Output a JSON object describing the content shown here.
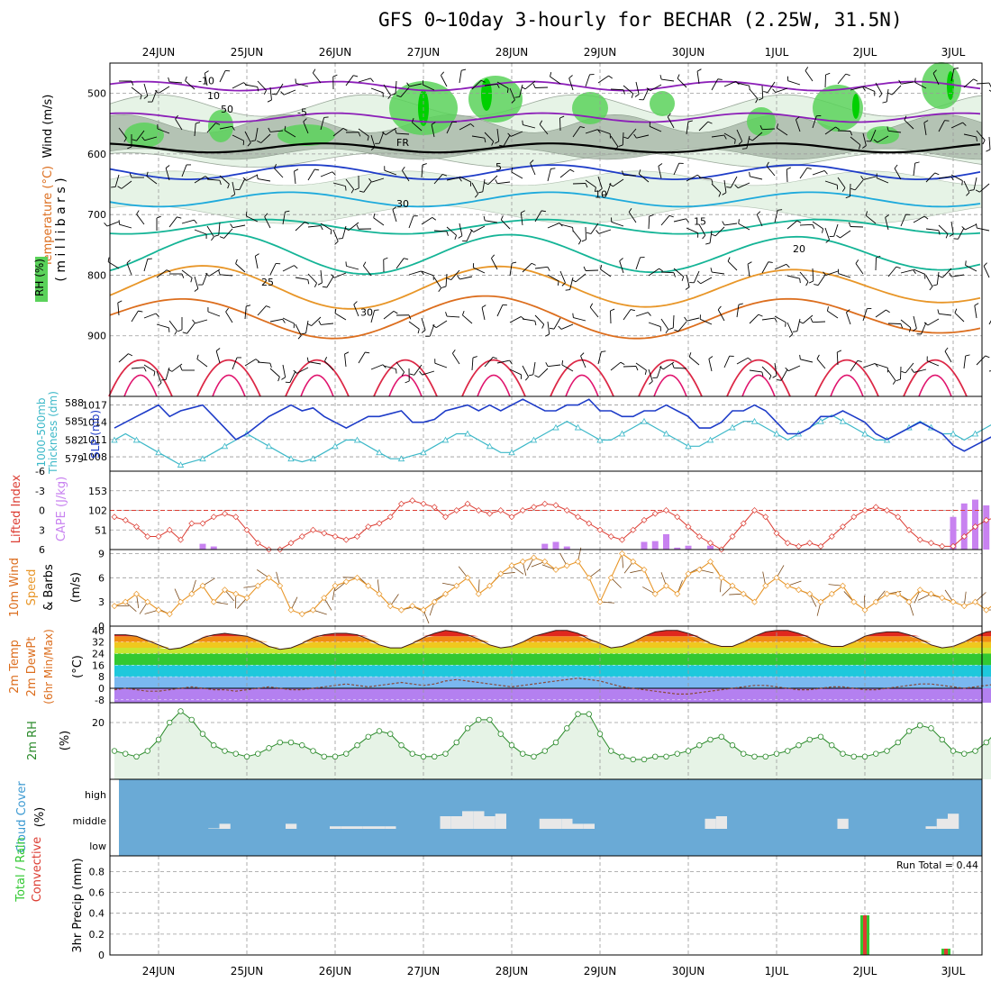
{
  "title": "GFS 0~10day 3-hourly for BECHAR (2.25W, 31.5N)",
  "dates": [
    "24JUN",
    "25JUN",
    "26JUN",
    "27JUN",
    "28JUN",
    "29JUN",
    "30JUN",
    "1JUL",
    "2JUL",
    "3JUL"
  ],
  "colors": {
    "rh": "#5ad25a",
    "rh_light": "#e6f3e6",
    "rh_mid": "#a8b8a8",
    "purple": "#8c1fb8",
    "blue": "#1e3cc8",
    "cyan": "#1eaadc",
    "teal": "#14b496",
    "orange": "#e89628",
    "dark_orange": "#dc6e1e",
    "red": "#dc2846",
    "cape": "#c882f0",
    "cloud_bg": "#6aaad6",
    "cloud": "#e8e8e8",
    "slp": "#1e3cc8",
    "thickness": "#3cb8c8",
    "li": "#dc3c32",
    "wind_speed": "#e89628",
    "barb": "#7a4a1a",
    "rh2m": "#2a8a2a",
    "precip_total": "#32c832",
    "precip_conv": "#dc3c32"
  },
  "chart_data": [
    {
      "id": "upper-air",
      "type": "contour",
      "ylabel_lines": [
        "Wind (m/s)",
        "Temperature (°C)",
        "RH (%)"
      ],
      "yaxis_label": "( m i l l i b a r s )",
      "yticks": [
        500,
        600,
        700,
        800,
        900
      ],
      "ylim": [
        1000,
        450
      ],
      "temperature_isotherms": [
        {
          "label": "-10",
          "color": "purple",
          "level_mb": 488
        },
        {
          "label": "-5",
          "color": "purple",
          "level_mb": 540
        },
        {
          "label": "FR",
          "color": "black",
          "level_mb": 590
        },
        {
          "label": "5",
          "color": "blue",
          "level_mb": 630
        },
        {
          "label": "10",
          "color": "cyan",
          "level_mb": 675
        },
        {
          "label": "15",
          "color": "teal",
          "level_mb": 720
        },
        {
          "label": "20",
          "color": "teal",
          "level_mb": 765
        },
        {
          "label": "25",
          "color": "orange",
          "level_mb": 820
        },
        {
          "label": "30",
          "color": "dark_orange",
          "level_mb": 870
        }
      ],
      "rh_labels": [
        "10",
        "30",
        "50"
      ]
    },
    {
      "id": "slp-thickness",
      "type": "line",
      "ylabel_left": [
        "1000-500mb",
        "Thickness (dm)"
      ],
      "ylabel_right": "SLP (mb)",
      "yticks_left": [
        579,
        582,
        585,
        588
      ],
      "yticks_right": [
        1008,
        1011,
        1014,
        1017
      ],
      "ylim_slp": [
        1005.5,
        1018.5
      ],
      "ylim_thk": [
        577,
        589
      ],
      "series": [
        {
          "key": "slp",
          "values": [
            1013,
            1014,
            1015,
            1016,
            1017,
            1015,
            1016,
            1016.5,
            1017,
            1015,
            1013,
            1011,
            1012,
            1013.5,
            1015,
            1016,
            1017,
            1016,
            1016.5,
            1015,
            1014,
            1013,
            1014,
            1015,
            1015,
            1015.5,
            1016,
            1014,
            1014,
            1014.5,
            1016,
            1016.5,
            1017,
            1016,
            1017,
            1016,
            1017,
            1018,
            1017,
            1016,
            1016,
            1017,
            1017,
            1018,
            1016,
            1016,
            1015,
            1015,
            1016,
            1016,
            1017,
            1016,
            1015,
            1013,
            1013,
            1014,
            1016,
            1016,
            1017,
            1016,
            1014,
            1012,
            1012,
            1013,
            1015,
            1015,
            1016,
            1015,
            1014,
            1012,
            1011,
            1012,
            1013,
            1014,
            1013,
            1012,
            1010,
            1009,
            1010,
            1011,
            1012,
            1010,
            1009,
            1008,
            1009,
            1010,
            1011,
            1010,
            1009,
            1008.5
          ]
        },
        {
          "key": "thickness",
          "values": [
            582,
            583,
            582,
            581,
            580,
            579,
            578,
            578.5,
            579,
            580,
            581,
            582,
            583,
            582,
            581,
            580,
            579,
            578.5,
            579,
            580,
            581,
            582,
            582,
            581,
            580,
            579,
            579,
            579.5,
            580,
            581,
            582,
            583,
            583,
            582,
            581,
            580,
            580,
            581,
            582,
            583,
            584,
            585,
            584,
            583,
            582,
            582,
            583,
            584,
            585,
            584,
            583,
            582,
            581,
            581,
            582,
            583,
            584,
            585,
            585,
            584,
            583,
            582,
            583,
            584,
            585,
            586,
            585,
            584,
            583,
            582,
            582,
            583,
            584,
            585,
            584,
            583,
            583,
            582,
            583,
            584,
            585,
            586,
            587,
            588,
            586,
            585,
            584,
            583,
            582.5,
            582
          ]
        }
      ]
    },
    {
      "id": "li-cape",
      "type": "line+bar",
      "ylabel_left": "Lifted Index",
      "ylabel_right": "CAPE (J/kg)",
      "yticks_left": [
        -6,
        -3,
        0,
        3,
        6
      ],
      "yticks_right": [
        51,
        102,
        153
      ],
      "ylim_li": [
        6,
        -6
      ],
      "ylim_cape": [
        0,
        204
      ],
      "lifted_index": [
        1,
        1.5,
        2.5,
        4,
        4,
        3,
        4.5,
        2,
        2,
        1,
        0.5,
        1,
        3,
        5,
        6,
        6,
        5,
        4,
        3,
        3.5,
        4,
        4.5,
        4,
        2.5,
        2,
        1,
        -1,
        -1.5,
        -1,
        -0.5,
        1,
        0,
        -1,
        0,
        0.5,
        0,
        1,
        0,
        -0.5,
        -1,
        -0.8,
        0,
        1,
        2,
        3,
        4,
        4.5,
        3,
        1.5,
        0.5,
        0,
        1,
        2.5,
        4,
        5,
        6,
        4,
        2,
        0,
        1,
        3.5,
        5,
        5.5,
        5,
        5.5,
        4,
        2.5,
        1,
        0,
        -0.5,
        0,
        1,
        3,
        4.5,
        5,
        5.5,
        5.5,
        4,
        2.5,
        1.5,
        1,
        1,
        2,
        3.5,
        4,
        4,
        3,
        1,
        0.5,
        1
      ],
      "cape": [
        0,
        0,
        0,
        0,
        0,
        0,
        0,
        0,
        15,
        8,
        0,
        0,
        0,
        0,
        0,
        0,
        0,
        0,
        0,
        0,
        0,
        0,
        0,
        0,
        0,
        0,
        0,
        0,
        0,
        0,
        0,
        0,
        0,
        0,
        0,
        0,
        0,
        0,
        0,
        15,
        20,
        8,
        0,
        0,
        0,
        0,
        0,
        0,
        20,
        22,
        40,
        5,
        10,
        0,
        10,
        0,
        0,
        0,
        0,
        0,
        0,
        0,
        0,
        0,
        0,
        0,
        0,
        0,
        0,
        0,
        0,
        0,
        0,
        0,
        0,
        0,
        85,
        120,
        130,
        115,
        50,
        10,
        0,
        0,
        0,
        5,
        168,
        140,
        120,
        85
      ]
    },
    {
      "id": "wind10m",
      "type": "line",
      "ylabel_lines": [
        "10m Wind",
        "Speed",
        "& Barbs"
      ],
      "yunit": "(m/s)",
      "yticks": [
        0,
        3,
        6,
        9
      ],
      "ylim": [
        0,
        9.5
      ],
      "values": [
        2.5,
        3,
        4,
        3,
        2,
        1.5,
        3,
        4,
        5,
        3,
        4.5,
        4,
        3.5,
        5,
        6,
        5,
        2,
        1.5,
        2,
        3.5,
        5,
        5.5,
        6,
        5,
        4,
        2.5,
        2,
        2.5,
        2,
        3,
        4,
        5,
        6,
        4,
        5,
        6.5,
        7.5,
        8,
        8.5,
        8,
        7,
        7.5,
        8,
        6,
        3,
        6,
        9,
        8,
        7,
        4,
        5,
        4,
        6.5,
        7,
        8,
        6,
        5,
        4,
        3,
        5,
        6,
        5,
        4.5,
        4,
        3,
        4,
        5,
        3,
        2,
        3,
        4,
        4,
        3,
        4.5,
        4,
        3.5,
        3,
        2.5,
        3,
        2,
        3,
        1,
        3,
        4.5,
        5,
        6,
        6.5,
        7,
        6,
        3,
        2.5,
        3
      ]
    },
    {
      "id": "temp2m",
      "type": "area",
      "ylabel_lines": [
        "2m Temp",
        "2m DewPt",
        "(6hr Min/Max)"
      ],
      "yunit": "(°C)",
      "yticks": [
        -8,
        0,
        8,
        16,
        24,
        32,
        40
      ],
      "ylim": [
        -10,
        43
      ],
      "temperature": [
        37,
        37,
        36,
        33,
        30,
        27,
        28,
        31,
        35,
        37,
        38,
        37,
        36,
        33,
        29,
        27,
        28,
        31,
        35,
        37,
        38,
        38,
        37,
        34,
        30,
        28,
        28,
        31,
        35,
        38,
        40,
        39,
        37,
        34,
        30,
        28,
        29,
        32,
        36,
        38,
        40,
        40,
        38,
        34,
        31,
        28,
        29,
        32,
        36,
        39,
        40,
        40,
        38,
        35,
        31,
        29,
        29,
        32,
        36,
        39,
        40,
        40,
        38,
        35,
        31,
        29,
        29,
        32,
        36,
        38,
        39,
        39,
        37,
        34,
        30,
        28,
        29,
        32,
        36,
        39,
        40,
        40,
        38,
        35,
        31,
        29,
        30,
        33,
        36,
        37
      ],
      "dewpoint": [
        -1,
        0,
        -1,
        -2,
        -2,
        -1,
        0,
        1,
        0,
        -1,
        -1,
        -2,
        -1,
        0,
        1,
        0,
        -1,
        -1,
        0,
        1,
        2,
        3,
        2,
        1,
        2,
        3,
        4,
        3,
        2,
        3,
        5,
        6,
        5,
        4,
        3,
        2,
        1,
        2,
        3,
        4,
        5,
        6,
        7,
        6,
        5,
        3,
        1,
        0,
        -1,
        -2,
        -3,
        -4,
        -4,
        -3,
        -2,
        -1,
        0,
        1,
        2,
        2,
        1,
        0,
        -1,
        -1,
        0,
        1,
        1,
        0,
        -1,
        -1,
        0,
        1,
        2,
        3,
        3,
        2,
        1,
        0,
        1,
        2,
        3,
        4,
        5,
        4,
        3,
        2,
        1,
        2,
        2,
        2
      ]
    },
    {
      "id": "rh2m",
      "type": "line",
      "ylabel": "2m RH",
      "yunit": "(%)",
      "yticks": [
        20
      ],
      "ylim": [
        0,
        27
      ],
      "values": [
        10,
        9,
        8,
        10,
        14,
        20,
        24,
        21,
        16,
        12,
        10,
        9,
        8,
        9,
        11,
        13,
        13,
        12,
        10,
        8,
        8,
        9,
        12,
        15,
        17,
        16,
        12,
        9,
        8,
        8,
        9,
        13,
        18,
        21,
        21,
        16,
        12,
        9,
        8,
        10,
        13,
        18,
        23,
        23,
        16,
        10,
        8,
        7,
        7,
        8,
        8,
        9,
        10,
        12,
        14,
        15,
        12,
        9,
        8,
        8,
        9,
        10,
        12,
        14,
        15,
        12,
        9,
        8,
        8,
        9,
        10,
        13,
        17,
        19,
        18,
        14,
        10,
        9,
        10,
        13,
        17,
        20,
        19,
        15,
        11,
        10,
        13,
        17,
        19,
        19.5
      ]
    },
    {
      "id": "cloud",
      "type": "bar",
      "ylabel": "Cloud Cover",
      "yunit": "(%)",
      "ytick_labels": [
        "high",
        "middle",
        "low"
      ],
      "middle": [
        0,
        0,
        0,
        0,
        0,
        0,
        0,
        0,
        0,
        2,
        20,
        0,
        0,
        0,
        0,
        0,
        20,
        0,
        0,
        0,
        10,
        10,
        10,
        10,
        10,
        10,
        0,
        0,
        0,
        0,
        50,
        50,
        70,
        70,
        50,
        60,
        0,
        0,
        0,
        40,
        40,
        40,
        20,
        20,
        0,
        0,
        0,
        0,
        0,
        0,
        0,
        0,
        0,
        0,
        40,
        50,
        0,
        0,
        0,
        0,
        0,
        0,
        0,
        0,
        0,
        0,
        40,
        0,
        0,
        0,
        0,
        0,
        0,
        0,
        10,
        40,
        60,
        0,
        0,
        0,
        0,
        0,
        0,
        20,
        0,
        0,
        0,
        70,
        90,
        80
      ],
      "high": [
        0,
        0,
        0,
        0,
        0,
        0,
        0,
        0,
        0,
        0,
        0,
        0,
        0,
        0,
        0,
        0,
        0,
        0,
        0,
        0,
        0,
        0,
        0,
        0,
        0,
        0,
        0,
        0,
        0,
        0,
        0,
        0,
        0,
        0,
        0,
        0,
        0,
        0,
        0,
        0,
        0,
        0,
        0,
        0,
        0,
        0,
        0,
        0,
        0,
        0,
        0,
        0,
        0,
        0,
        0,
        0,
        0,
        0,
        0,
        0,
        0,
        0,
        0,
        0,
        0,
        0,
        0,
        0,
        0,
        0,
        0,
        0,
        0,
        0,
        0,
        0,
        0,
        0,
        0,
        0,
        0,
        0,
        0,
        0,
        20,
        0,
        0,
        0,
        30,
        30
      ]
    },
    {
      "id": "precip",
      "type": "bar",
      "ylabel_lines": [
        "Total / Rain",
        "Convective"
      ],
      "yaxis_label": "3hr Precip (mm)",
      "yticks": [
        0,
        0.2,
        0.4,
        0.6,
        0.8
      ],
      "ylim": [
        0,
        0.95
      ],
      "annotation": "Run Total = 0.44",
      "bars": [
        {
          "date": "2JUL",
          "total": 0.38,
          "convective": 0.38
        },
        {
          "date": "3JUL",
          "total": 0.06,
          "convective": 0.06
        }
      ]
    }
  ]
}
